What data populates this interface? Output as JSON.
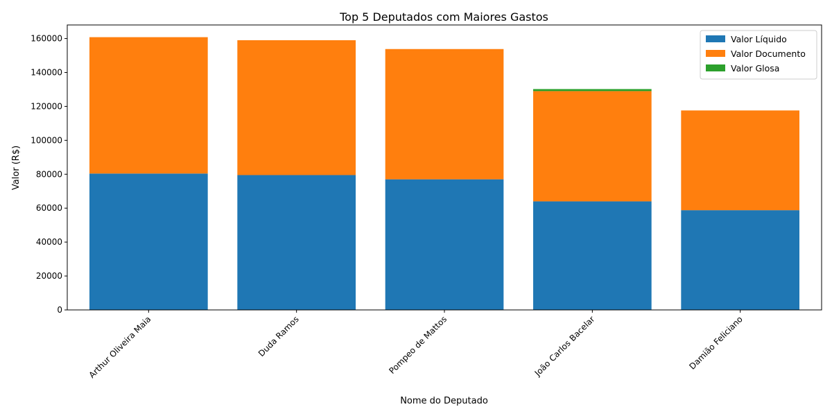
{
  "chart_data": {
    "type": "bar",
    "stacked": true,
    "title": "Top 5 Deputados com Maiores Gastos",
    "xlabel": "Nome do Deputado",
    "ylabel": "Valor (R$)",
    "ylim": [
      0,
      168000
    ],
    "yticks": [
      0,
      20000,
      40000,
      60000,
      80000,
      100000,
      120000,
      140000,
      160000
    ],
    "grid": false,
    "legend_position": "top-right",
    "categories": [
      "Arthur Oliveira Maia",
      "Duda Ramos",
      "Pompeo de Mattos",
      "João Carlos Bacelar",
      "Damião Feliciano"
    ],
    "series": [
      {
        "name": "Valor Líquido",
        "color": "#1f77b4",
        "values": [
          80400,
          79500,
          77000,
          64000,
          58800
        ]
      },
      {
        "name": "Valor Documento",
        "color": "#ff7f0e",
        "values": [
          80400,
          79500,
          76800,
          65000,
          58800
        ]
      },
      {
        "name": "Valor Glosa",
        "color": "#2ca02c",
        "values": [
          0,
          0,
          0,
          1200,
          0
        ]
      }
    ]
  }
}
